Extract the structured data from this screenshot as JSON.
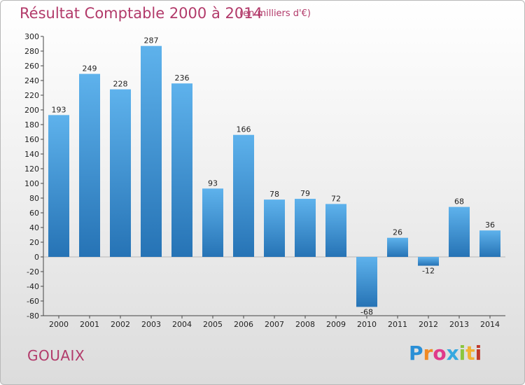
{
  "header": {
    "title": "Résultat Comptable 2000 à 2014",
    "subtitle": "(en milliers d'€)"
  },
  "footer": {
    "town": "GOUAIX",
    "logo_text": "Proxiti"
  },
  "colors": {
    "accent": "#b23a6a",
    "bar_top": "#5eb2ec",
    "bar_bottom": "#2673b5",
    "axis": "#444444"
  },
  "chart_data": {
    "type": "bar",
    "title": "Résultat Comptable 2000 à 2014",
    "categories": [
      "2000",
      "2001",
      "2002",
      "2003",
      "2004",
      "2005",
      "2006",
      "2007",
      "2008",
      "2009",
      "2010",
      "2011",
      "2012",
      "2013",
      "2014"
    ],
    "values": [
      193,
      249,
      228,
      287,
      236,
      93,
      166,
      78,
      79,
      72,
      -68,
      26,
      -12,
      68,
      36
    ],
    "ylim": [
      -80,
      300
    ],
    "ytick_step": 20,
    "grid": false,
    "xlabel": "",
    "ylabel": ""
  }
}
